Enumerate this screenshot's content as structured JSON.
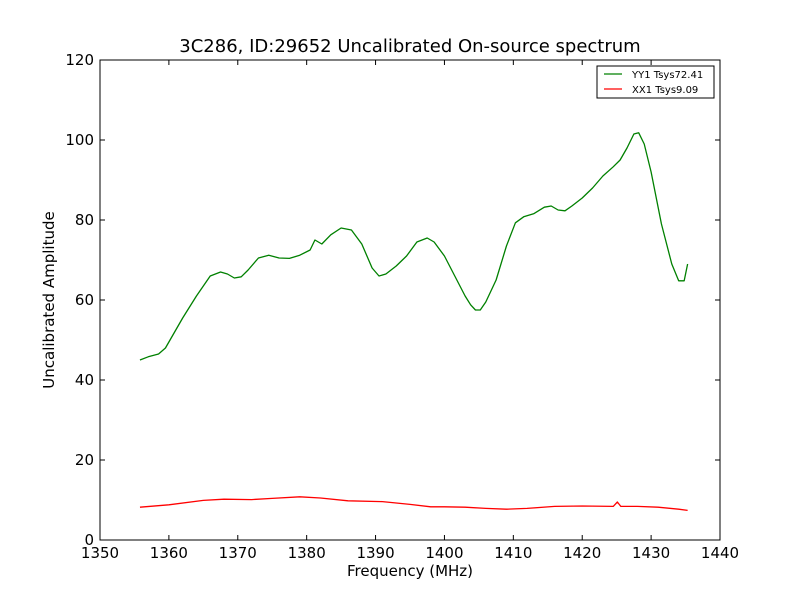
{
  "chart_data": {
    "type": "line",
    "title": "3C286, ID:29652 Uncalibrated On-source spectrum",
    "xlabel": "Frequency (MHz)",
    "ylabel": "Uncalibrated Amplitude",
    "xlim": [
      1350,
      1440
    ],
    "ylim": [
      0,
      120
    ],
    "xticks": [
      1350,
      1360,
      1370,
      1380,
      1390,
      1400,
      1410,
      1420,
      1430,
      1440
    ],
    "yticks": [
      0,
      20,
      40,
      60,
      80,
      100,
      120
    ],
    "grid": false,
    "legend_position": "top-right",
    "series": [
      {
        "name": "YY1 Tsys72.41",
        "color": "#008000",
        "x": [
          1355.8,
          1357,
          1358.5,
          1359.5,
          1360.5,
          1362,
          1364,
          1366,
          1367.5,
          1368.5,
          1369.5,
          1370.5,
          1371.5,
          1373,
          1374.5,
          1376,
          1377.5,
          1379,
          1380.5,
          1381.2,
          1382.2,
          1383.5,
          1385,
          1386.5,
          1388,
          1389.5,
          1390.5,
          1391.5,
          1393,
          1394.5,
          1396,
          1397.5,
          1398.5,
          1400,
          1401.5,
          1403,
          1403.8,
          1404.5,
          1405.2,
          1406,
          1407.5,
          1409,
          1410.3,
          1411.5,
          1413,
          1414.5,
          1415.5,
          1416.5,
          1417.5,
          1418.5,
          1420,
          1421.5,
          1423,
          1424.5,
          1425.5,
          1426.5,
          1427.5,
          1428.2,
          1429,
          1430,
          1431.5,
          1433,
          1434,
          1434.8,
          1435.3
        ],
        "values": [
          45,
          45.8,
          46.5,
          48,
          51,
          55.5,
          61,
          66,
          67,
          66.5,
          65.5,
          65.8,
          67.5,
          70.5,
          71.2,
          70.5,
          70.4,
          71.2,
          72.5,
          75,
          74,
          76.3,
          78,
          77.5,
          74,
          68,
          66,
          66.5,
          68.5,
          71,
          74.5,
          75.5,
          74.5,
          71,
          66,
          61,
          58.8,
          57.5,
          57.5,
          59.5,
          65,
          73.5,
          79.3,
          80.8,
          81.6,
          83.2,
          83.5,
          82.5,
          82.3,
          83.5,
          85.5,
          88,
          91,
          93.3,
          95,
          98,
          101.5,
          101.8,
          99,
          92,
          79,
          69,
          64.8,
          64.8,
          69
        ]
      },
      {
        "name": "XX1 Tsys9.09",
        "color": "#ff0000",
        "x": [
          1355.8,
          1360,
          1365,
          1368,
          1372,
          1375,
          1379,
          1382,
          1386,
          1391,
          1395,
          1398,
          1400,
          1403,
          1406,
          1409,
          1412,
          1416,
          1420,
          1424.5,
          1425.1,
          1425.6,
          1428,
          1431,
          1434,
          1435.3
        ],
        "values": [
          8.2,
          8.8,
          9.9,
          10.2,
          10.1,
          10.4,
          10.8,
          10.5,
          9.8,
          9.6,
          8.9,
          8.3,
          8.3,
          8.2,
          7.9,
          7.7,
          7.9,
          8.4,
          8.5,
          8.4,
          9.5,
          8.4,
          8.4,
          8.2,
          7.7,
          7.4
        ]
      }
    ]
  }
}
